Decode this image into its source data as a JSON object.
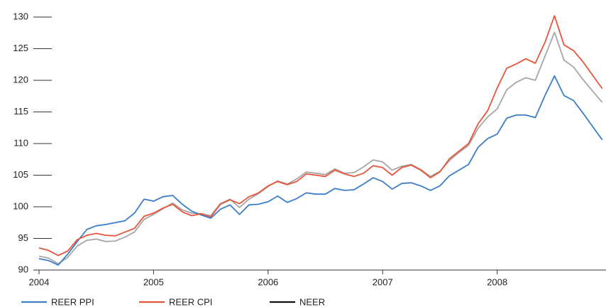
{
  "chart_data": {
    "type": "line",
    "x": [
      2004,
      2004.083,
      2004.167,
      2004.25,
      2004.333,
      2004.417,
      2004.5,
      2004.583,
      2004.667,
      2004.75,
      2004.833,
      2004.917,
      2005,
      2005.083,
      2005.167,
      2005.25,
      2005.333,
      2005.417,
      2005.5,
      2005.583,
      2005.667,
      2005.75,
      2005.833,
      2005.917,
      2006,
      2006.083,
      2006.167,
      2006.25,
      2006.333,
      2006.417,
      2006.5,
      2006.583,
      2006.667,
      2006.75,
      2006.833,
      2006.917,
      2007,
      2007.083,
      2007.167,
      2007.25,
      2007.333,
      2007.417,
      2007.5,
      2007.583,
      2007.667,
      2007.75,
      2007.833,
      2007.917,
      2008,
      2008.083,
      2008.167,
      2008.25,
      2008.333,
      2008.417,
      2008.5,
      2008.583,
      2008.667,
      2008.75,
      2008.833,
      2008.917
    ],
    "series": [
      {
        "name": "REER PPI",
        "color": "#3a7dc9",
        "legend_color": "#3a7dc9",
        "values": [
          91.8,
          91.5,
          90.8,
          92.5,
          94.5,
          96.4,
          97.0,
          97.2,
          97.5,
          97.8,
          99.0,
          101.2,
          100.9,
          101.6,
          101.8,
          100.4,
          99.3,
          98.7,
          98.2,
          99.6,
          100.3,
          98.8,
          100.3,
          100.4,
          100.8,
          101.7,
          100.7,
          101.3,
          102.2,
          102.0,
          102.0,
          102.9,
          102.6,
          102.7,
          103.6,
          104.6,
          104.0,
          102.8,
          103.7,
          103.8,
          103.3,
          102.6,
          103.3,
          104.9,
          105.8,
          106.7,
          109.4,
          110.8,
          111.5,
          114.0,
          114.5,
          114.5,
          114.1,
          117.6,
          120.7,
          117.6,
          116.8,
          114.8,
          112.7,
          110.6
        ]
      },
      {
        "name": "REER CPI",
        "color": "#e8553a",
        "legend_color": "#e8553a",
        "values": [
          93.5,
          93.1,
          92.3,
          93.0,
          94.8,
          95.5,
          95.8,
          95.5,
          95.4,
          96.0,
          96.6,
          98.5,
          99.0,
          99.8,
          100.4,
          99.2,
          98.6,
          98.9,
          98.4,
          100.4,
          101.1,
          100.5,
          101.6,
          102.2,
          103.3,
          104.0,
          103.5,
          104.0,
          105.2,
          105.0,
          104.8,
          105.8,
          105.2,
          104.8,
          105.3,
          106.5,
          106.2,
          105.0,
          106.2,
          106.6,
          105.8,
          104.6,
          105.5,
          107.6,
          108.8,
          110.0,
          113.1,
          115.2,
          118.8,
          121.9,
          122.6,
          123.4,
          122.7,
          126.0,
          130.2,
          125.6,
          124.7,
          122.9,
          120.8,
          118.7
        ]
      },
      {
        "name": "NEER",
        "color": "#a6a6a6",
        "legend_color": "#111111",
        "values": [
          92.2,
          91.9,
          91.0,
          92.0,
          93.8,
          94.7,
          94.9,
          94.5,
          94.6,
          95.2,
          96.0,
          98.0,
          98.8,
          99.7,
          100.6,
          99.5,
          99.0,
          98.9,
          98.6,
          100.5,
          101.2,
          99.9,
          101.2,
          102.1,
          103.2,
          104.1,
          103.6,
          104.4,
          105.5,
          105.3,
          105.1,
          106.0,
          105.3,
          105.4,
          106.3,
          107.4,
          107.1,
          105.8,
          106.4,
          106.7,
          105.9,
          104.8,
          105.6,
          107.3,
          108.6,
          109.7,
          112.4,
          114.2,
          115.5,
          118.5,
          119.7,
          120.4,
          120.0,
          123.8,
          127.6,
          123.2,
          122.1,
          120.1,
          118.3,
          116.5
        ]
      }
    ],
    "xlim": [
      2004,
      2008.95
    ],
    "xticks": [
      2004,
      2005,
      2006,
      2007,
      2008
    ],
    "ylim": [
      90,
      130
    ],
    "yticks": [
      90,
      95,
      100,
      105,
      110,
      115,
      120,
      125,
      130
    ],
    "grid": false,
    "legend": "bottom"
  }
}
